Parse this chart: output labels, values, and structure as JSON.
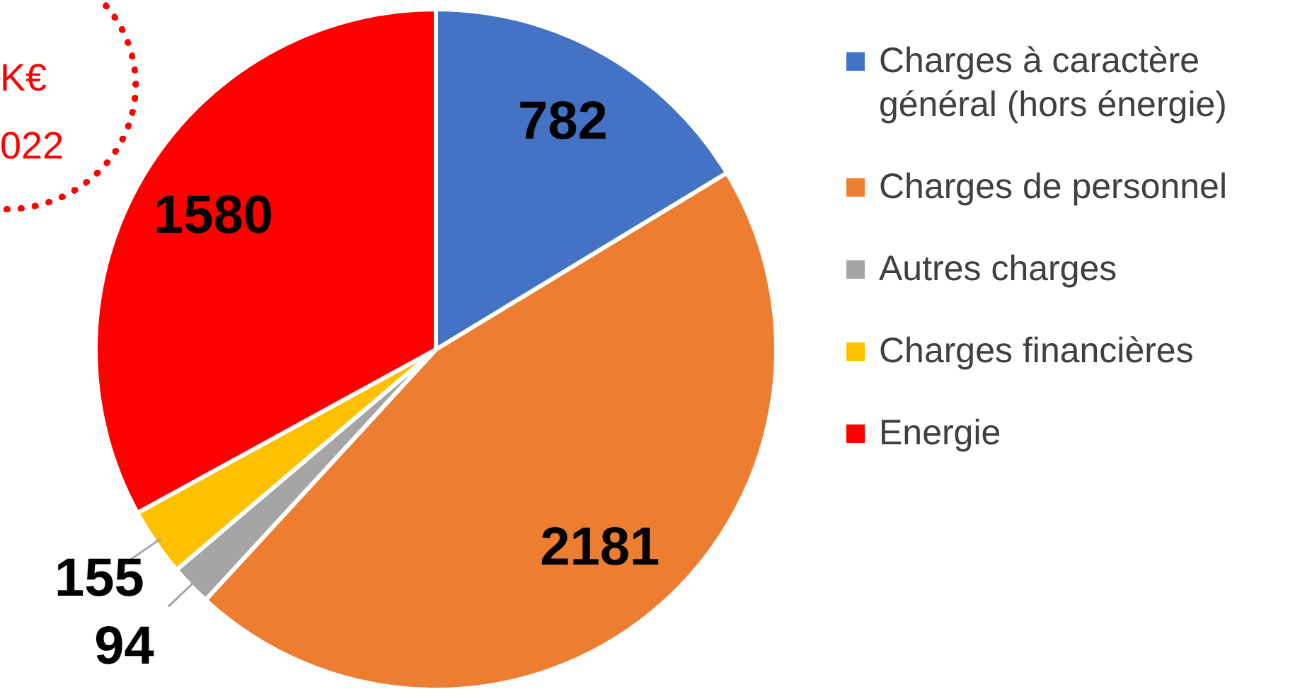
{
  "chart_data": {
    "type": "pie",
    "categories": [
      "Charges à caractère général (hors énergie)",
      "Charges de personnel",
      "Autres charges",
      "Charges financières",
      "Energie"
    ],
    "values": [
      782,
      2181,
      94,
      155,
      1580
    ],
    "colors": [
      "#4472c4",
      "#ed7d31",
      "#a5a5a5",
      "#ffc000",
      "#ff0000"
    ],
    "data_labels": true,
    "legend": "right",
    "annotations": [
      "K€",
      "022"
    ]
  }
}
